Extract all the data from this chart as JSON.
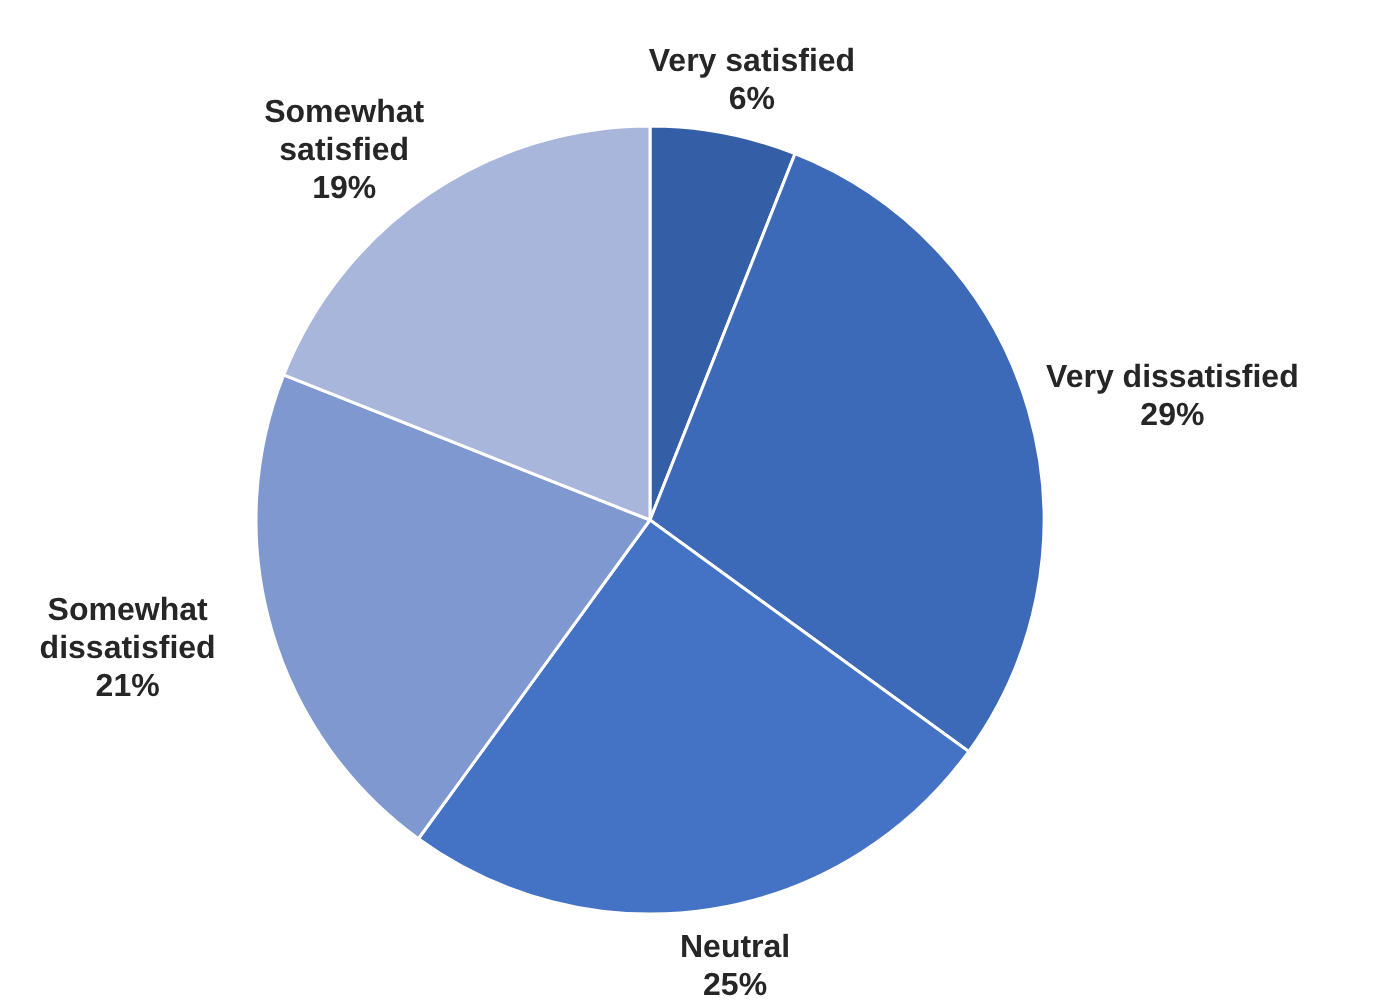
{
  "chart_data": {
    "type": "pie",
    "categories": [
      "Very satisfied",
      "Very dissatisfied",
      "Neutral",
      "Somewhat dissatisfied",
      "Somewhat satisfied"
    ],
    "values": [
      6,
      29,
      25,
      21,
      19
    ],
    "colors": [
      "#345ea5",
      "#3d69b9",
      "#4472c4",
      "#8098d0",
      "#a9b6dc"
    ],
    "value_labels": [
      "6%",
      "29%",
      "25%",
      "21%",
      "19%"
    ]
  }
}
